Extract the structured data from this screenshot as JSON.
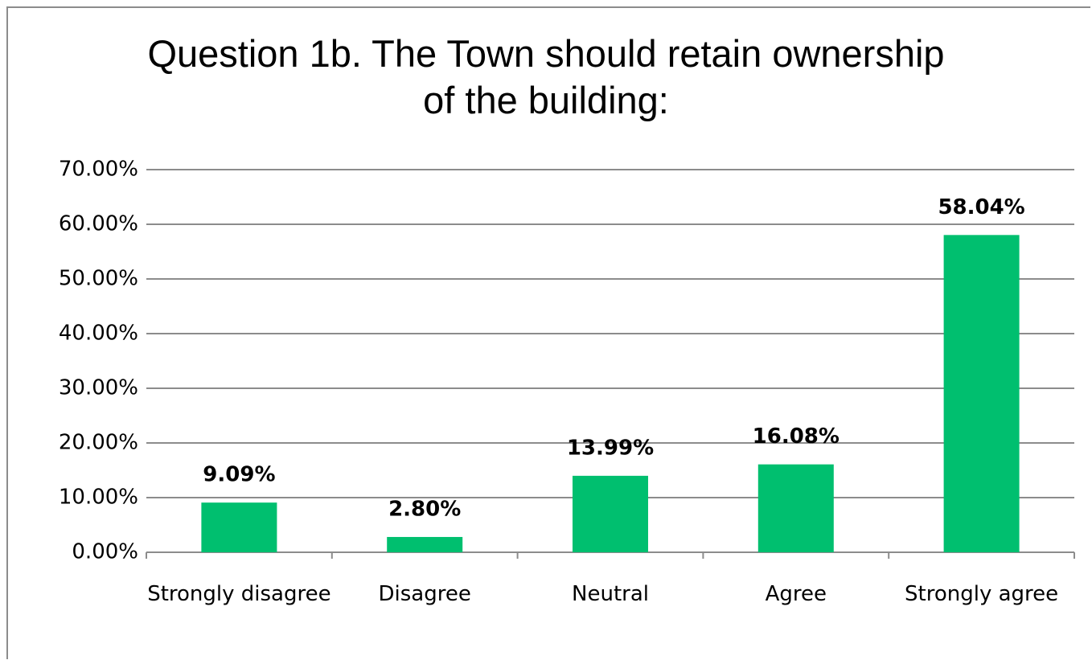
{
  "chart_data": {
    "type": "bar",
    "title": "Question 1b. The Town should retain ownership of the building:",
    "categories": [
      "Strongly disagree",
      "Disagree",
      "Neutral",
      "Agree",
      "Strongly agree"
    ],
    "values": [
      9.09,
      2.8,
      13.99,
      16.08,
      58.04
    ],
    "value_labels": [
      "9.09%",
      "2.80%",
      "13.99%",
      "16.08%",
      "58.04%"
    ],
    "color": "#00bf6f",
    "ylim": [
      0,
      70
    ],
    "yticks": [
      {
        "value": 0,
        "label": "0.00%"
      },
      {
        "value": 10,
        "label": "10.00%"
      },
      {
        "value": 20,
        "label": "20.00%"
      },
      {
        "value": 30,
        "label": "30.00%"
      },
      {
        "value": 40,
        "label": "40.00%"
      },
      {
        "value": 50,
        "label": "50.00%"
      },
      {
        "value": 60,
        "label": "60.00%"
      },
      {
        "value": 70,
        "label": "70.00%"
      }
    ],
    "grid": true
  }
}
